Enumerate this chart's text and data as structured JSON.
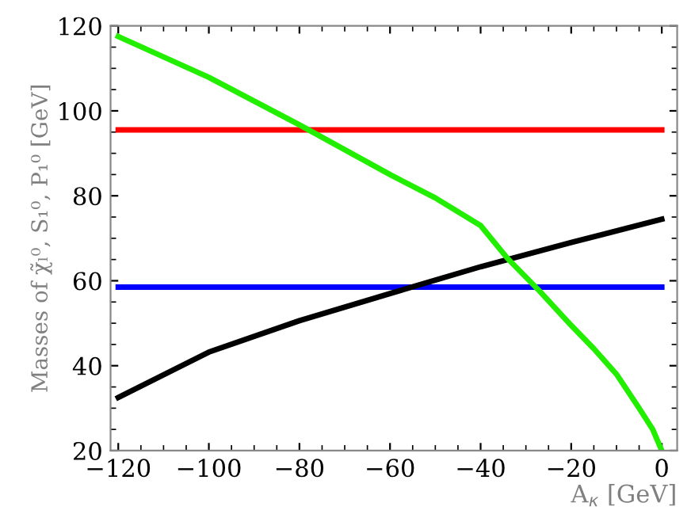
{
  "chart_data": {
    "type": "line",
    "xlabel": "A$_{κ}$ [GeV]",
    "ylabel": "Masses of χ̃ₗ⁰, S₁⁰, P₁⁰ [GeV]",
    "xlim": [
      -121.7,
      3.4
    ],
    "ylim": [
      20,
      120
    ],
    "xticks": [
      -120,
      -100,
      -80,
      -60,
      -40,
      -20,
      0
    ],
    "yticks": [
      20,
      40,
      60,
      80,
      100,
      120
    ],
    "grid": false,
    "legend": false,
    "marker": "none",
    "line_style": "solid",
    "series": [
      {
        "color": "#ff0000",
        "x": [
          -120,
          0
        ],
        "values": [
          95.5,
          95.5
        ]
      },
      {
        "color": "#0000ff",
        "x": [
          -120,
          0
        ],
        "values": [
          58.5,
          58.5
        ]
      },
      {
        "color": "#000000",
        "x": [
          -120,
          -100,
          -80,
          -60,
          -40,
          -20,
          0
        ],
        "values": [
          32.5,
          43.2,
          50.6,
          57,
          63.3,
          69,
          74.5
        ]
      },
      {
        "color": "#22ee00",
        "x": [
          -120,
          -100,
          -80,
          -60,
          -50,
          -40,
          -34,
          -27,
          -20,
          -15,
          -10,
          -5,
          -2,
          0
        ],
        "values": [
          117.5,
          107.9,
          96.7,
          85,
          79.5,
          73,
          65.2,
          57.6,
          49.5,
          44,
          38,
          30,
          25,
          20
        ]
      }
    ]
  }
}
